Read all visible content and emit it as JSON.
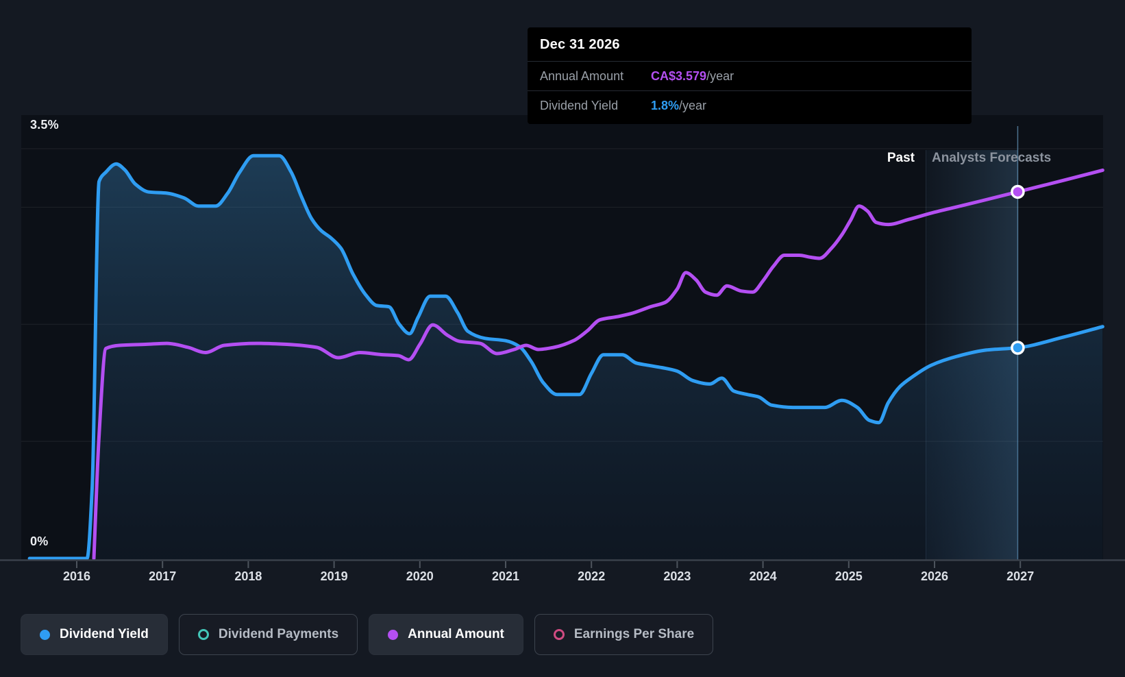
{
  "y_axis": {
    "max_label": "3.5%",
    "min_label": "0%"
  },
  "x_axis": {
    "years": [
      "2016",
      "2017",
      "2018",
      "2019",
      "2020",
      "2021",
      "2022",
      "2023",
      "2024",
      "2025",
      "2026",
      "2027"
    ]
  },
  "period_labels": {
    "past": "Past",
    "forecast": "Analysts Forecasts"
  },
  "tooltip": {
    "date": "Dec 31 2026",
    "rows": [
      {
        "label": "Annual Amount",
        "value": "CA$3.579",
        "suffix": "/year",
        "color": "#b44ff2"
      },
      {
        "label": "Dividend Yield",
        "value": "1.8%",
        "suffix": "/year",
        "color": "#2f9df2"
      }
    ]
  },
  "legend": [
    {
      "label": "Dividend Yield",
      "color": "#2f9df2",
      "swatch": "filled",
      "active": true
    },
    {
      "label": "Dividend Payments",
      "color": "#43c6b8",
      "swatch": "ring",
      "active": false
    },
    {
      "label": "Annual Amount",
      "color": "#b44ff2",
      "swatch": "filled",
      "active": true
    },
    {
      "label": "Earnings Per Share",
      "color": "#cf4b81",
      "swatch": "ring",
      "active": false
    }
  ],
  "chart_data": {
    "type": "line",
    "x_domain": [
      2015.45,
      2027.96
    ],
    "x_ticks": [
      2016,
      2017,
      2018,
      2019,
      2020,
      2021,
      2022,
      2023,
      2024,
      2025,
      2026,
      2027
    ],
    "percent_axis": {
      "min": 0,
      "max": 3.5,
      "gridlines": [
        1,
        2,
        3,
        3.5
      ]
    },
    "currency_axis": {
      "min": 0,
      "max": 4.0,
      "unit": "CA$"
    },
    "forecast_start": 2025.9,
    "hover_x": 2026.97,
    "hover_date": "Dec 31 2026",
    "legend_position": "bottom",
    "series": [
      {
        "name": "Dividend Yield",
        "axis": "percent",
        "unit": "%",
        "color": "#2f9df2",
        "area_fill": true,
        "marker_value": 1.8,
        "points": [
          [
            2015.45,
            0
          ],
          [
            2016.12,
            0
          ],
          [
            2016.18,
            0.6
          ],
          [
            2016.26,
            3.22
          ],
          [
            2016.34,
            3.3
          ],
          [
            2016.46,
            3.37
          ],
          [
            2016.56,
            3.32
          ],
          [
            2016.68,
            3.2
          ],
          [
            2016.84,
            3.13
          ],
          [
            2017.05,
            3.12
          ],
          [
            2017.25,
            3.08
          ],
          [
            2017.42,
            3.01
          ],
          [
            2017.62,
            3.01
          ],
          [
            2017.76,
            3.12
          ],
          [
            2017.9,
            3.3
          ],
          [
            2018.06,
            3.44
          ],
          [
            2018.36,
            3.44
          ],
          [
            2018.5,
            3.3
          ],
          [
            2018.62,
            3.09
          ],
          [
            2018.74,
            2.9
          ],
          [
            2018.85,
            2.8
          ],
          [
            2018.96,
            2.74
          ],
          [
            2019.08,
            2.65
          ],
          [
            2019.22,
            2.43
          ],
          [
            2019.36,
            2.26
          ],
          [
            2019.5,
            2.16
          ],
          [
            2019.64,
            2.15
          ],
          [
            2019.76,
            2.0
          ],
          [
            2019.88,
            1.92
          ],
          [
            2019.98,
            2.06
          ],
          [
            2020.12,
            2.24
          ],
          [
            2020.3,
            2.24
          ],
          [
            2020.44,
            2.1
          ],
          [
            2020.56,
            1.94
          ],
          [
            2020.76,
            1.88
          ],
          [
            2021.0,
            1.86
          ],
          [
            2021.16,
            1.81
          ],
          [
            2021.3,
            1.68
          ],
          [
            2021.44,
            1.5
          ],
          [
            2021.6,
            1.4
          ],
          [
            2021.86,
            1.4
          ],
          [
            2022.0,
            1.58
          ],
          [
            2022.14,
            1.74
          ],
          [
            2022.36,
            1.74
          ],
          [
            2022.52,
            1.67
          ],
          [
            2022.66,
            1.65
          ],
          [
            2022.82,
            1.63
          ],
          [
            2023.0,
            1.6
          ],
          [
            2023.18,
            1.52
          ],
          [
            2023.38,
            1.49
          ],
          [
            2023.52,
            1.54
          ],
          [
            2023.66,
            1.43
          ],
          [
            2023.82,
            1.4
          ],
          [
            2023.95,
            1.38
          ],
          [
            2024.1,
            1.31
          ],
          [
            2024.35,
            1.29
          ],
          [
            2024.72,
            1.29
          ],
          [
            2024.92,
            1.35
          ],
          [
            2025.1,
            1.29
          ],
          [
            2025.24,
            1.18
          ],
          [
            2025.35,
            1.16
          ],
          [
            2025.46,
            1.33
          ],
          [
            2025.6,
            1.47
          ],
          [
            2025.72,
            1.54
          ],
          [
            2025.96,
            1.65
          ],
          [
            2026.28,
            1.73
          ],
          [
            2026.6,
            1.78
          ],
          [
            2026.97,
            1.8
          ],
          [
            2027.5,
            1.89
          ],
          [
            2027.96,
            1.98
          ]
        ]
      },
      {
        "name": "Annual Amount",
        "axis": "currency",
        "unit": "CA$/year",
        "color": "#b44ff2",
        "area_fill": false,
        "marker_value": 3.579,
        "points": [
          [
            2016.2,
            0
          ],
          [
            2016.26,
            1.2
          ],
          [
            2016.34,
            2.05
          ],
          [
            2016.5,
            2.08
          ],
          [
            2016.8,
            2.09
          ],
          [
            2017.05,
            2.1
          ],
          [
            2017.3,
            2.06
          ],
          [
            2017.5,
            2.01
          ],
          [
            2017.72,
            2.08
          ],
          [
            2018.1,
            2.1
          ],
          [
            2018.45,
            2.09
          ],
          [
            2018.8,
            2.06
          ],
          [
            2019.05,
            1.96
          ],
          [
            2019.3,
            2.01
          ],
          [
            2019.55,
            1.99
          ],
          [
            2019.75,
            1.98
          ],
          [
            2019.87,
            1.94
          ],
          [
            2020.0,
            2.09
          ],
          [
            2020.15,
            2.28
          ],
          [
            2020.32,
            2.18
          ],
          [
            2020.46,
            2.12
          ],
          [
            2020.7,
            2.1
          ],
          [
            2020.9,
            2.0
          ],
          [
            2021.1,
            2.04
          ],
          [
            2021.24,
            2.08
          ],
          [
            2021.38,
            2.04
          ],
          [
            2021.56,
            2.06
          ],
          [
            2021.8,
            2.13
          ],
          [
            2021.95,
            2.22
          ],
          [
            2022.1,
            2.33
          ],
          [
            2022.3,
            2.36
          ],
          [
            2022.46,
            2.39
          ],
          [
            2022.7,
            2.46
          ],
          [
            2022.86,
            2.5
          ],
          [
            2023.0,
            2.63
          ],
          [
            2023.1,
            2.79
          ],
          [
            2023.22,
            2.72
          ],
          [
            2023.33,
            2.6
          ],
          [
            2023.46,
            2.57
          ],
          [
            2023.58,
            2.66
          ],
          [
            2023.75,
            2.61
          ],
          [
            2023.88,
            2.6
          ],
          [
            2024.0,
            2.71
          ],
          [
            2024.12,
            2.85
          ],
          [
            2024.25,
            2.96
          ],
          [
            2024.42,
            2.96
          ],
          [
            2024.56,
            2.94
          ],
          [
            2024.66,
            2.93
          ],
          [
            2024.8,
            3.03
          ],
          [
            2024.92,
            3.16
          ],
          [
            2025.02,
            3.3
          ],
          [
            2025.12,
            3.44
          ],
          [
            2025.22,
            3.39
          ],
          [
            2025.32,
            3.28
          ],
          [
            2025.46,
            3.26
          ],
          [
            2025.7,
            3.31
          ],
          [
            2026.0,
            3.38
          ],
          [
            2026.35,
            3.45
          ],
          [
            2026.97,
            3.579
          ],
          [
            2027.5,
            3.69
          ],
          [
            2027.96,
            3.79
          ]
        ]
      }
    ]
  }
}
